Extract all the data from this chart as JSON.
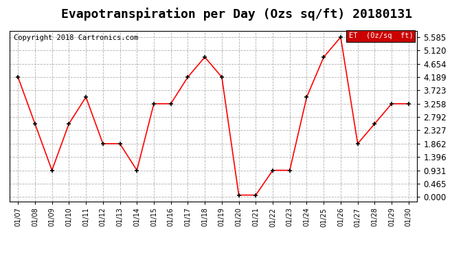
{
  "title": "Evapotranspiration per Day (Ozs sq/ft) 20180131",
  "copyright": "Copyright 2018 Cartronics.com",
  "legend_label": "ET  (0z/sq  ft)",
  "dates": [
    "01/07",
    "01/08",
    "01/09",
    "01/10",
    "01/11",
    "01/12",
    "01/13",
    "01/14",
    "01/15",
    "01/16",
    "01/17",
    "01/18",
    "01/19",
    "01/20",
    "01/21",
    "01/22",
    "01/23",
    "01/24",
    "01/25",
    "01/26",
    "01/27",
    "01/28",
    "01/29",
    "01/30"
  ],
  "values": [
    4.189,
    2.558,
    0.931,
    2.558,
    3.49,
    1.862,
    1.862,
    0.931,
    3.258,
    3.258,
    4.189,
    4.886,
    4.189,
    0.065,
    0.065,
    0.931,
    0.931,
    3.49,
    4.886,
    5.585,
    1.862,
    2.558,
    3.258,
    3.258
  ],
  "line_color": "red",
  "marker_color": "black",
  "background_color": "#ffffff",
  "grid_color": "#b0b0b0",
  "yticks": [
    0.0,
    0.465,
    0.931,
    1.396,
    1.862,
    2.327,
    2.792,
    3.258,
    3.723,
    4.189,
    4.654,
    5.12,
    5.585
  ],
  "ylim": [
    -0.15,
    5.8
  ],
  "title_fontsize": 13,
  "copyright_fontsize": 7.5,
  "legend_bg": "#cc0000",
  "legend_text_color": "#ffffff",
  "tick_fontsize": 8.5,
  "xtick_fontsize": 7
}
